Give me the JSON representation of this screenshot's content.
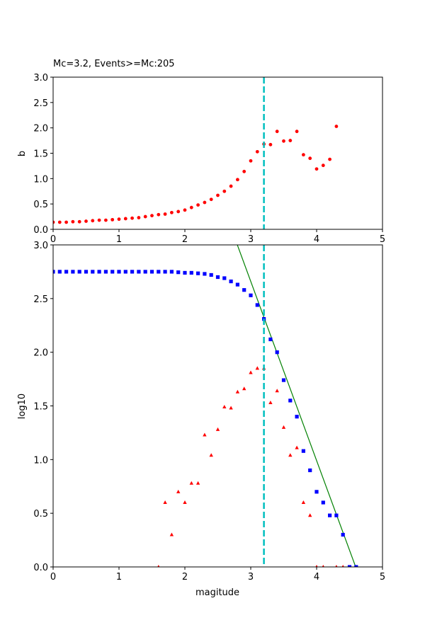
{
  "chart_data": [
    {
      "type": "scatter",
      "title": "Mc=3.2, Events>=Mc:205",
      "xlabel": "",
      "ylabel": "b",
      "xlim": [
        0,
        5
      ],
      "ylim": [
        0,
        3
      ],
      "xticks": [
        "0",
        "1",
        "2",
        "3",
        "4",
        "5"
      ],
      "yticks": [
        "0.0",
        "0.5",
        "1.0",
        "1.5",
        "2.0",
        "2.5",
        "3.0"
      ],
      "grid": false,
      "mc_line": {
        "x": 3.2,
        "color": "#00bfbf",
        "style": "dashed"
      },
      "series": [
        {
          "color": "#ff0000",
          "marker": "circle",
          "x": [
            0,
            0.1,
            0.2,
            0.3,
            0.4,
            0.5,
            0.6,
            0.7,
            0.8,
            0.9,
            1.0,
            1.1,
            1.2,
            1.3,
            1.4,
            1.5,
            1.6,
            1.7,
            1.8,
            1.9,
            2.0,
            2.1,
            2.2,
            2.3,
            2.4,
            2.5,
            2.6,
            2.7,
            2.8,
            2.9,
            3.0,
            3.1,
            3.2,
            3.3,
            3.4,
            3.5,
            3.6,
            3.7,
            3.8,
            3.9,
            4.0,
            4.1,
            4.2,
            4.3
          ],
          "y": [
            0.14,
            0.14,
            0.14,
            0.15,
            0.15,
            0.16,
            0.17,
            0.18,
            0.18,
            0.19,
            0.2,
            0.21,
            0.22,
            0.23,
            0.25,
            0.27,
            0.29,
            0.3,
            0.33,
            0.35,
            0.38,
            0.43,
            0.48,
            0.53,
            0.59,
            0.67,
            0.75,
            0.85,
            0.98,
            1.14,
            1.35,
            1.53,
            1.68,
            1.67,
            1.93,
            1.74,
            1.75,
            1.93,
            1.47,
            1.4,
            1.19,
            1.26,
            1.38,
            2.03
          ]
        }
      ]
    },
    {
      "type": "scatter",
      "title": "",
      "xlabel": "magitude",
      "ylabel": "log10",
      "xlim": [
        0,
        5
      ],
      "ylim": [
        0,
        3
      ],
      "xticks": [
        "0",
        "1",
        "2",
        "3",
        "4",
        "5"
      ],
      "yticks": [
        "0.0",
        "0.5",
        "1.0",
        "1.5",
        "2.0",
        "2.5",
        "3.0"
      ],
      "grid": false,
      "mc_line": {
        "x": 3.2,
        "color": "#00bfbf",
        "style": "dashed"
      },
      "fit_line": {
        "color": "#008000",
        "a": 7.67,
        "b": 1.67
      },
      "series": [
        {
          "color": "#0000ff",
          "marker": "square",
          "x": [
            0,
            0.1,
            0.2,
            0.3,
            0.4,
            0.5,
            0.6,
            0.7,
            0.8,
            0.9,
            1.0,
            1.1,
            1.2,
            1.3,
            1.4,
            1.5,
            1.6,
            1.7,
            1.8,
            1.9,
            2.0,
            2.1,
            2.2,
            2.3,
            2.4,
            2.5,
            2.6,
            2.7,
            2.8,
            2.9,
            3.0,
            3.1,
            3.2,
            3.3,
            3.4,
            3.5,
            3.6,
            3.7,
            3.8,
            3.9,
            4.0,
            4.1,
            4.2,
            4.3,
            4.4,
            4.5,
            4.6
          ],
          "y": [
            2.75,
            2.75,
            2.75,
            2.75,
            2.75,
            2.75,
            2.75,
            2.75,
            2.75,
            2.75,
            2.75,
            2.75,
            2.75,
            2.75,
            2.75,
            2.75,
            2.75,
            2.75,
            2.75,
            2.745,
            2.74,
            2.74,
            2.735,
            2.73,
            2.72,
            2.7,
            2.69,
            2.66,
            2.63,
            2.58,
            2.53,
            2.44,
            2.31,
            2.12,
            2.0,
            1.74,
            1.55,
            1.4,
            1.08,
            0.9,
            0.7,
            0.6,
            0.48,
            0.48,
            0.3,
            0,
            0
          ]
        },
        {
          "color": "#ff0000",
          "marker": "triangle",
          "x": [
            1.6,
            1.7,
            1.8,
            1.9,
            2.0,
            2.1,
            2.2,
            2.3,
            2.4,
            2.5,
            2.6,
            2.7,
            2.8,
            2.9,
            3.0,
            3.1,
            3.2,
            3.3,
            3.4,
            3.5,
            3.6,
            3.7,
            3.8,
            3.9,
            4.0,
            4.1,
            4.3,
            4.4
          ],
          "y": [
            0,
            0.6,
            0.3,
            0.7,
            0.6,
            0.78,
            0.78,
            1.23,
            1.04,
            1.28,
            1.49,
            1.48,
            1.63,
            1.66,
            1.81,
            1.85,
            1.85,
            1.53,
            1.64,
            1.3,
            1.04,
            1.11,
            0.6,
            0.48,
            0,
            0,
            0,
            0
          ]
        }
      ]
    }
  ]
}
